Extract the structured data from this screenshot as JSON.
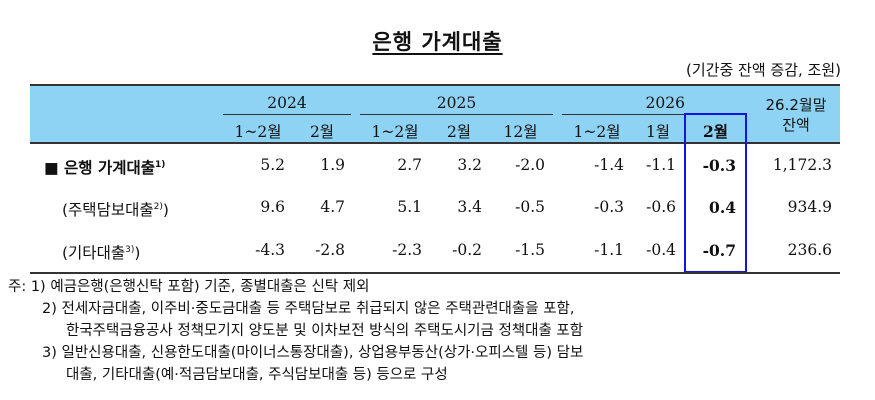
{
  "title": "은행 가계대출",
  "unit": "(기간중 잔액 증감, 조원)",
  "table": {
    "years": [
      "2024",
      "2025",
      "2026"
    ],
    "balance_header": [
      "26.2월말",
      "잔액"
    ],
    "columns": [
      "1~2월",
      "2월",
      "1~2월",
      "2월",
      "12월",
      "1~2월",
      "1월",
      "2월"
    ],
    "rows": [
      {
        "label": "■ 은행 가계대출",
        "note": "1)",
        "values": [
          "5.2",
          "1.9",
          "2.7",
          "3.2",
          "-2.0",
          "-1.4",
          "-1.1",
          "-0.3"
        ],
        "balance": "1,172.3"
      },
      {
        "label": "(주택담보대출",
        "note": "2)",
        "suffix": ")",
        "values": [
          "9.6",
          "4.7",
          "5.1",
          "3.4",
          "-0.5",
          "-0.3",
          "-0.6",
          "0.4"
        ],
        "balance": "934.9"
      },
      {
        "label": "(기타대출",
        "note": "3)",
        "suffix": ")",
        "values": [
          "-4.3",
          "-2.8",
          "-2.3",
          "-0.2",
          "-1.5",
          "-1.1",
          "-0.4",
          "-0.7"
        ],
        "balance": "236.6"
      }
    ],
    "highlight_color": "#1515e0",
    "header_bg": "#8fd3f4"
  },
  "notes": [
    "주: 1) 예금은행(은행신탁 포함) 기준, 종별대출은 신탁 제외",
    "2) 전세자금대출, 이주비·중도금대출 등 주택담보로 취급되지 않은 주택관련대출을 포함,",
    "한국주택금융공사 정책모기지 양도분 및 이차보전 방식의 주택도시기금 정책대출 포함",
    "3) 일반신용대출, 신용한도대출(마이너스통장대출), 상업용부동산(상가·오피스텔 등) 담보",
    "대출, 기타대출(예·적금담보대출, 주식담보대출 등) 등으로 구성"
  ]
}
